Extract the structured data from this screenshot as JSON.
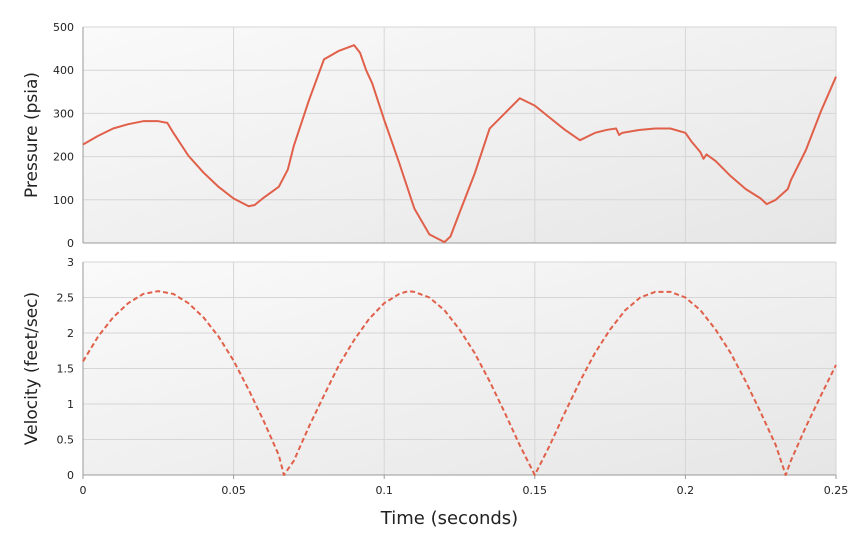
{
  "chart_data": [
    {
      "type": "line",
      "ylabel": "Pressure (psia)",
      "ylim": [
        0,
        500
      ],
      "yticks": [
        0,
        100,
        200,
        300,
        400,
        500
      ],
      "xlim": [
        0,
        0.25
      ],
      "grid": true,
      "series": [
        {
          "color": "#e0604a",
          "style": "solid",
          "x": [
            0,
            0.005,
            0.01,
            0.015,
            0.02,
            0.025,
            0.028,
            0.03,
            0.035,
            0.04,
            0.045,
            0.05,
            0.055,
            0.057,
            0.06,
            0.065,
            0.068,
            0.07,
            0.075,
            0.08,
            0.085,
            0.09,
            0.092,
            0.094,
            0.096,
            0.1,
            0.105,
            0.11,
            0.115,
            0.12,
            0.122,
            0.125,
            0.13,
            0.135,
            0.14,
            0.145,
            0.15,
            0.155,
            0.16,
            0.165,
            0.17,
            0.174,
            0.177,
            0.178,
            0.179,
            0.185,
            0.19,
            0.195,
            0.2,
            0.202,
            0.205,
            0.206,
            0.207,
            0.21,
            0.215,
            0.22,
            0.225,
            0.227,
            0.23,
            0.234,
            0.235,
            0.24,
            0.245,
            0.25
          ],
          "values": [
            228,
            248,
            265,
            275,
            282,
            282,
            278,
            255,
            202,
            163,
            130,
            103,
            85,
            88,
            105,
            130,
            170,
            225,
            330,
            425,
            445,
            458,
            440,
            400,
            370,
            285,
            185,
            80,
            20,
            2,
            15,
            70,
            160,
            265,
            300,
            335,
            318,
            290,
            262,
            238,
            255,
            262,
            265,
            250,
            255,
            262,
            265,
            265,
            255,
            235,
            210,
            195,
            205,
            190,
            155,
            125,
            103,
            90,
            100,
            125,
            145,
            215,
            305,
            385
          ]
        }
      ]
    },
    {
      "type": "line",
      "ylabel": "Velocity (feet/sec)",
      "ylim": [
        0,
        3
      ],
      "yticks": [
        "0",
        "0.5",
        "1",
        "1.5",
        "2",
        "2.5",
        "3"
      ],
      "xlim": [
        0,
        0.25
      ],
      "xticks": [
        "0",
        "0.05",
        "0.1",
        "0.15",
        "0.2",
        "0.25"
      ],
      "xlabel": "Time (seconds)",
      "grid": true,
      "series": [
        {
          "color": "#e0604a",
          "style": "dashed",
          "note_period_start": 0,
          "x": [
            0,
            0.005,
            0.01,
            0.015,
            0.02,
            0.025,
            0.03,
            0.035,
            0.04,
            0.045,
            0.05,
            0.055,
            0.06,
            0.065,
            0.0667,
            0.07,
            0.075,
            0.08,
            0.085,
            0.09,
            0.095,
            0.1,
            0.105,
            0.108,
            0.11,
            0.115,
            0.12,
            0.125,
            0.13,
            0.135,
            0.14,
            0.145,
            0.15,
            0.155,
            0.16,
            0.165,
            0.17,
            0.175,
            0.18,
            0.185,
            0.19,
            0.195,
            0.2,
            0.205,
            0.21,
            0.215,
            0.22,
            0.225,
            0.23,
            0.2333,
            0.235,
            0.24,
            0.245,
            0.25
          ],
          "values": [
            1.6,
            1.95,
            2.22,
            2.42,
            2.55,
            2.59,
            2.55,
            2.42,
            2.22,
            1.95,
            1.61,
            1.2,
            0.76,
            0.28,
            0.0,
            0.2,
            0.68,
            1.12,
            1.55,
            1.9,
            2.2,
            2.42,
            2.55,
            2.59,
            2.58,
            2.5,
            2.32,
            2.05,
            1.72,
            1.32,
            0.88,
            0.42,
            0.0,
            0.42,
            0.88,
            1.32,
            1.72,
            2.05,
            2.32,
            2.5,
            2.58,
            2.58,
            2.5,
            2.32,
            2.05,
            1.72,
            1.32,
            0.88,
            0.42,
            0.0,
            0.2,
            0.68,
            1.12,
            1.55
          ]
        }
      ]
    }
  ]
}
